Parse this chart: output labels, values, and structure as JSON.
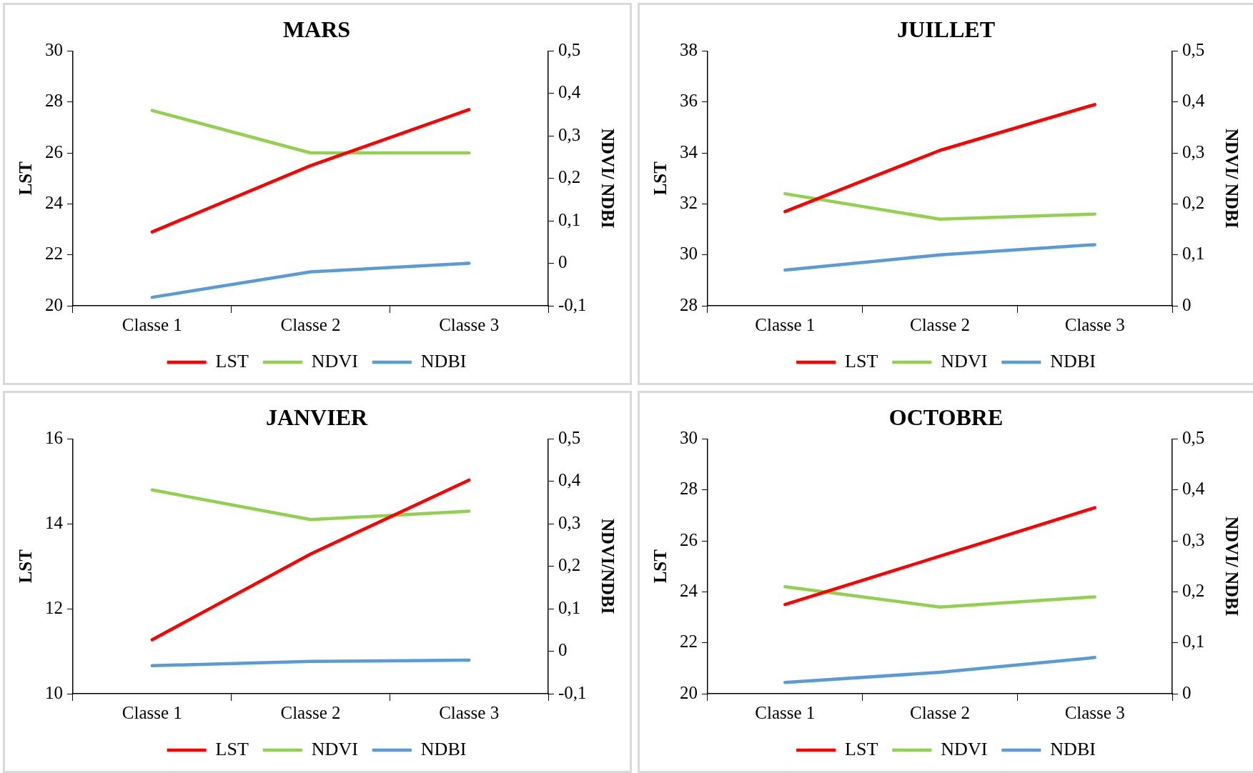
{
  "chart_data": [
    {
      "type": "line",
      "title": "MARS",
      "ylabel": "LST",
      "y2label": "NDVI/ NDBI",
      "categories": [
        "Classe 1",
        "Classe 2",
        "Classe 3"
      ],
      "ylim": [
        20,
        30
      ],
      "yticks": [
        20,
        22,
        24,
        26,
        28,
        30
      ],
      "y2lim": [
        -0.1,
        0.5
      ],
      "y2ticks": [
        {
          "value": -0.1,
          "label": "-0,1"
        },
        {
          "value": 0,
          "label": "0"
        },
        {
          "value": 0.1,
          "label": "0,1"
        },
        {
          "value": 0.2,
          "label": "0,2"
        },
        {
          "value": 0.3,
          "label": "0,3"
        },
        {
          "value": 0.4,
          "label": "0,4"
        },
        {
          "value": 0.5,
          "label": "0,5"
        }
      ],
      "legend": "bottom",
      "marker": "none",
      "series": [
        {
          "name": "LST",
          "color": "#ff0000",
          "values": [
            22.9,
            25.5,
            27.7
          ]
        },
        {
          "name": "NDVI",
          "color": "#92d050",
          "axis": "y2",
          "values": [
            0.36,
            0.26,
            0.26
          ]
        },
        {
          "name": "NDBI",
          "color": "#5b9bd5",
          "axis": "y2",
          "values": [
            -0.08,
            -0.02,
            0.0
          ]
        }
      ]
    },
    {
      "type": "line",
      "title": "JUILLET",
      "ylabel": "LST",
      "y2label": "NDVI/ NDBI",
      "categories": [
        "Classe 1",
        "Classe 2",
        "Classe 3"
      ],
      "ylim": [
        28,
        38
      ],
      "yticks": [
        28,
        30,
        32,
        34,
        36,
        38
      ],
      "y2lim": [
        0,
        0.5
      ],
      "y2ticks": [
        {
          "value": 0,
          "label": "0"
        },
        {
          "value": 0.1,
          "label": "0,1"
        },
        {
          "value": 0.2,
          "label": "0,2"
        },
        {
          "value": 0.3,
          "label": "0,3"
        },
        {
          "value": 0.4,
          "label": "0,4"
        },
        {
          "value": 0.5,
          "label": "0,5"
        }
      ],
      "legend": "bottom",
      "marker": "none",
      "series": [
        {
          "name": "LST",
          "color": "#ff0000",
          "values": [
            31.7,
            34.1,
            35.9
          ]
        },
        {
          "name": "NDVI",
          "color": "#92d050",
          "axis": "y2",
          "values": [
            0.22,
            0.17,
            0.18
          ]
        },
        {
          "name": "NDBI",
          "color": "#5b9bd5",
          "axis": "y2",
          "values": [
            0.07,
            0.1,
            0.12
          ]
        }
      ]
    },
    {
      "type": "line",
      "title": "JANVIER",
      "ylabel": "LST",
      "y2label": "NDVI/NDBI",
      "categories": [
        "Classe 1",
        "Classe 2",
        "Classe 3"
      ],
      "ylim": [
        10,
        16
      ],
      "yticks": [
        10,
        12,
        14,
        16
      ],
      "y2lim": [
        -0.1,
        0.5
      ],
      "y2ticks": [
        {
          "value": -0.1,
          "label": "-0,1"
        },
        {
          "value": 0,
          "label": "0"
        },
        {
          "value": 0.1,
          "label": "0,1"
        },
        {
          "value": 0.2,
          "label": "0,2"
        },
        {
          "value": 0.3,
          "label": "0,3"
        },
        {
          "value": 0.4,
          "label": "0,4"
        },
        {
          "value": 0.5,
          "label": "0,5"
        }
      ],
      "legend": "bottom",
      "marker": "none",
      "series": [
        {
          "name": "LST",
          "color": "#ff0000",
          "values": [
            11.27,
            13.29,
            15.03
          ]
        },
        {
          "name": "NDVI",
          "color": "#92d050",
          "axis": "y2",
          "values": [
            0.38,
            0.31,
            0.33
          ]
        },
        {
          "name": "NDBI",
          "color": "#5b9bd5",
          "axis": "y2",
          "values": [
            -0.034,
            -0.024,
            -0.021
          ]
        }
      ]
    },
    {
      "type": "line",
      "title": "OCTOBRE",
      "ylabel": "LST",
      "y2label": "NDVI/ NDBI",
      "categories": [
        "Classe 1",
        "Classe 2",
        "Classe 3"
      ],
      "ylim": [
        20,
        30
      ],
      "yticks": [
        20,
        22,
        24,
        26,
        28,
        30
      ],
      "y2lim": [
        0,
        0.5
      ],
      "y2ticks": [
        {
          "value": 0,
          "label": "0"
        },
        {
          "value": 0.1,
          "label": "0,1"
        },
        {
          "value": 0.2,
          "label": "0,2"
        },
        {
          "value": 0.3,
          "label": "0,3"
        },
        {
          "value": 0.4,
          "label": "0,4"
        },
        {
          "value": 0.5,
          "label": "0,5"
        }
      ],
      "legend": "bottom",
      "marker": "none",
      "series": [
        {
          "name": "LST",
          "color": "#ff0000",
          "values": [
            23.5,
            25.4,
            27.3
          ]
        },
        {
          "name": "NDVI",
          "color": "#92d050",
          "axis": "y2",
          "values": [
            0.21,
            0.17,
            0.19
          ]
        },
        {
          "name": "NDBI",
          "color": "#5b9bd5",
          "axis": "y2",
          "values": [
            0.022,
            0.042,
            0.071
          ]
        }
      ]
    }
  ]
}
